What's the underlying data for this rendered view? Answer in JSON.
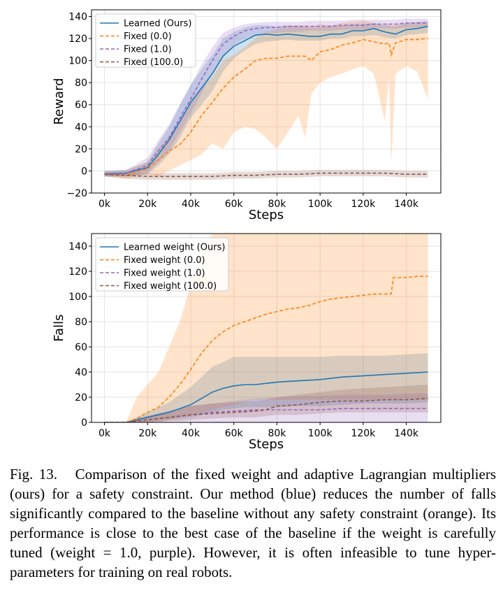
{
  "colors": {
    "learned": "#1f77b4",
    "fixed0": "#ff7f0e",
    "fixed1": "#9467bd",
    "fixed100": "#8c564b"
  },
  "caption": {
    "label": "Fig. 13.",
    "text": "Comparison of the fixed weight and adaptive Lagrangian multipliers (ours) for a safety constraint. Our method (blue) reduces the number of falls significantly compared to the baseline without any safety constraint (orange). Its performance is close to the best case of the baseline if the weight is carefully tuned (weight = 1.0, purple). However, it is often infeasible to tune hyper-parameters for training on real robots."
  },
  "chart_data": [
    {
      "type": "line",
      "xlabel": "Steps",
      "ylabel": "Reward",
      "xlim": [
        -6000,
        156000
      ],
      "ylim": [
        -20,
        146
      ],
      "xticks": [
        0,
        20000,
        40000,
        60000,
        80000,
        100000,
        120000,
        140000
      ],
      "xtick_labels": [
        "0k",
        "20k",
        "40k",
        "60k",
        "80k",
        "100k",
        "120k",
        "140k"
      ],
      "yticks": [
        -20,
        0,
        20,
        40,
        60,
        80,
        100,
        120,
        140
      ],
      "ytick_labels": [
        "−20",
        "0",
        "20",
        "40",
        "60",
        "80",
        "100",
        "120",
        "140"
      ],
      "legend_position": "top-left",
      "series": [
        {
          "key": "learned",
          "name": "Learned (Ours)",
          "style": "solid",
          "x": [
            0,
            10000,
            20000,
            25000,
            30000,
            35000,
            40000,
            45000,
            50000,
            55000,
            60000,
            65000,
            70000,
            75000,
            80000,
            85000,
            90000,
            95000,
            100000,
            105000,
            110000,
            115000,
            120000,
            125000,
            130000,
            135000,
            140000,
            145000,
            150000
          ],
          "y": [
            -3,
            -2,
            3,
            15,
            28,
            45,
            62,
            75,
            88,
            104,
            113,
            118,
            123,
            124,
            123,
            124,
            123,
            122,
            122,
            124,
            124,
            127,
            127,
            129,
            126,
            124,
            128,
            129,
            131
          ],
          "lower": [
            -5,
            -5,
            -3,
            5,
            15,
            30,
            48,
            60,
            72,
            90,
            102,
            109,
            115,
            117,
            118,
            119,
            118,
            118,
            118,
            120,
            120,
            122,
            122,
            123,
            121,
            120,
            123,
            124,
            125
          ],
          "upper": [
            0,
            1,
            8,
            25,
            40,
            60,
            78,
            92,
            105,
            120,
            126,
            130,
            132,
            132,
            131,
            132,
            131,
            130,
            130,
            131,
            132,
            133,
            133,
            134,
            132,
            131,
            134,
            135,
            136
          ]
        },
        {
          "key": "fixed0",
          "name": "Fixed (0.0)",
          "style": "dashed",
          "x": [
            0,
            10000,
            20000,
            25000,
            30000,
            35000,
            40000,
            45000,
            50000,
            55000,
            60000,
            65000,
            70000,
            75000,
            80000,
            85000,
            90000,
            93000,
            96000,
            100000,
            105000,
            110000,
            115000,
            120000,
            125000,
            130000,
            132000,
            133000,
            135000,
            140000,
            145000,
            150000
          ],
          "y": [
            -3,
            -4,
            2,
            10,
            18,
            24,
            35,
            50,
            62,
            75,
            85,
            92,
            100,
            102,
            102,
            104,
            104,
            104,
            100,
            108,
            110,
            114,
            116,
            119,
            117,
            115,
            116,
            105,
            116,
            119,
            119,
            120
          ],
          "lower": [
            -5,
            -7,
            -3,
            -5,
            0,
            5,
            10,
            15,
            25,
            20,
            35,
            40,
            38,
            30,
            20,
            35,
            50,
            30,
            70,
            80,
            85,
            88,
            92,
            95,
            88,
            45,
            85,
            5,
            88,
            95,
            90,
            65
          ],
          "upper": [
            -1,
            0,
            8,
            20,
            32,
            45,
            60,
            75,
            85,
            100,
            105,
            112,
            120,
            126,
            128,
            131,
            132,
            132,
            131,
            133,
            132,
            134,
            135,
            136,
            134,
            132,
            133,
            131,
            133,
            134,
            134,
            135
          ]
        },
        {
          "key": "fixed1",
          "name": "Fixed (1.0)",
          "style": "dashed",
          "x": [
            0,
            10000,
            20000,
            25000,
            30000,
            35000,
            40000,
            45000,
            50000,
            55000,
            60000,
            65000,
            70000,
            75000,
            80000,
            85000,
            90000,
            95000,
            100000,
            105000,
            110000,
            115000,
            120000,
            125000,
            130000,
            135000,
            140000,
            145000,
            150000
          ],
          "y": [
            -3,
            -2,
            5,
            18,
            30,
            48,
            65,
            83,
            100,
            115,
            122,
            127,
            129,
            130,
            130,
            131,
            131,
            131,
            131,
            131,
            132,
            132,
            132,
            133,
            133,
            133,
            134,
            134,
            134
          ],
          "lower": [
            -5,
            -5,
            -2,
            8,
            18,
            35,
            52,
            70,
            88,
            104,
            114,
            120,
            123,
            125,
            125,
            126,
            126,
            127,
            127,
            127,
            128,
            128,
            128,
            129,
            129,
            129,
            130,
            130,
            130
          ],
          "upper": [
            0,
            1,
            12,
            28,
            42,
            60,
            78,
            96,
            112,
            125,
            130,
            133,
            134,
            135,
            135,
            135,
            135,
            136,
            136,
            136,
            136,
            137,
            137,
            137,
            137,
            137,
            138,
            138,
            138
          ]
        },
        {
          "key": "fixed100",
          "name": "Fixed (100.0)",
          "style": "dashed",
          "x": [
            0,
            10000,
            20000,
            30000,
            40000,
            50000,
            60000,
            70000,
            80000,
            90000,
            100000,
            110000,
            120000,
            130000,
            140000,
            150000
          ],
          "y": [
            -3,
            -4,
            -5,
            -5,
            -5,
            -5,
            -4,
            -4,
            -3,
            -3,
            -2,
            -2,
            -2,
            -2,
            -3,
            -3
          ],
          "lower": [
            -5,
            -7,
            -8,
            -8,
            -8,
            -8,
            -7,
            -7,
            -6,
            -6,
            -5,
            -5,
            -5,
            -5,
            -6,
            -6
          ],
          "upper": [
            -1,
            -1,
            -2,
            -2,
            -2,
            -2,
            -1,
            -1,
            0,
            0,
            1,
            1,
            1,
            1,
            0,
            0
          ]
        }
      ]
    },
    {
      "type": "line",
      "xlabel": "Steps",
      "ylabel": "Falls",
      "xlim": [
        -6000,
        156000
      ],
      "ylim": [
        0,
        150
      ],
      "xticks": [
        0,
        20000,
        40000,
        60000,
        80000,
        100000,
        120000,
        140000
      ],
      "xtick_labels": [
        "0k",
        "20k",
        "40k",
        "60k",
        "80k",
        "100k",
        "120k",
        "140k"
      ],
      "yticks": [
        0,
        20,
        40,
        60,
        80,
        100,
        120,
        140
      ],
      "ytick_labels": [
        "0",
        "20",
        "40",
        "60",
        "80",
        "100",
        "120",
        "140"
      ],
      "legend_position": "top-left",
      "series": [
        {
          "key": "learned",
          "name": "Learned weight (Ours)",
          "style": "solid",
          "x": [
            0,
            10000,
            15000,
            20000,
            25000,
            30000,
            35000,
            40000,
            45000,
            50000,
            55000,
            60000,
            65000,
            70000,
            75000,
            80000,
            90000,
            100000,
            110000,
            120000,
            130000,
            140000,
            150000
          ],
          "y": [
            0,
            0,
            2,
            4,
            6,
            8,
            11,
            14,
            19,
            24,
            27,
            29,
            30,
            30,
            31,
            32,
            33,
            34,
            36,
            37,
            38,
            39,
            40
          ],
          "lower": [
            0,
            0,
            0,
            0,
            1,
            2,
            3,
            4,
            6,
            8,
            10,
            11,
            12,
            12,
            12,
            12,
            13,
            13,
            14,
            15,
            15,
            15,
            16
          ],
          "upper": [
            0,
            0,
            4,
            8,
            12,
            16,
            22,
            28,
            36,
            44,
            48,
            52,
            52,
            52,
            52,
            52,
            52,
            52,
            53,
            53,
            53,
            54,
            55
          ]
        },
        {
          "key": "fixed0",
          "name": "Fixed weight (0.0)",
          "style": "dashed",
          "x": [
            0,
            10000,
            15000,
            20000,
            25000,
            30000,
            35000,
            40000,
            45000,
            50000,
            55000,
            60000,
            65000,
            70000,
            75000,
            80000,
            85000,
            90000,
            95000,
            100000,
            105000,
            110000,
            115000,
            120000,
            125000,
            130000,
            133000,
            134000,
            140000,
            145000,
            150000
          ],
          "y": [
            0,
            0,
            3,
            8,
            12,
            20,
            30,
            42,
            55,
            65,
            72,
            77,
            80,
            83,
            86,
            88,
            90,
            91,
            93,
            96,
            98,
            99,
            100,
            101,
            102,
            102,
            102,
            115,
            115,
            116,
            116
          ],
          "lower": [
            0,
            0,
            0,
            0,
            1,
            2,
            4,
            6,
            8,
            10,
            12,
            14,
            16,
            18,
            18,
            18,
            18,
            18,
            18,
            18,
            18,
            18,
            18,
            18,
            18,
            18,
            18,
            18,
            18,
            18,
            18
          ],
          "upper": [
            0,
            0,
            20,
            30,
            40,
            60,
            80,
            110,
            130,
            150,
            150,
            150,
            150,
            150,
            150,
            150,
            150,
            150,
            150,
            150,
            150,
            150,
            150,
            150,
            150,
            150,
            150,
            150,
            150,
            150,
            150
          ]
        },
        {
          "key": "fixed1",
          "name": "Fixed weight (1.0)",
          "style": "dashed",
          "x": [
            0,
            10000,
            15000,
            20000,
            25000,
            30000,
            35000,
            40000,
            50000,
            60000,
            70000,
            80000,
            90000,
            100000,
            110000,
            120000,
            130000,
            140000,
            150000
          ],
          "y": [
            0,
            0,
            1,
            2,
            3,
            4,
            5,
            6,
            8,
            9,
            10,
            10,
            10,
            10,
            11,
            11,
            11,
            11,
            11
          ],
          "lower": [
            0,
            0,
            0,
            0,
            0,
            0,
            0,
            0,
            0,
            0,
            0,
            0,
            0,
            0,
            0,
            0,
            0,
            0,
            0
          ],
          "upper": [
            0,
            0,
            3,
            5,
            7,
            9,
            11,
            13,
            15,
            17,
            19,
            20,
            21,
            21,
            22,
            22,
            22,
            23,
            23
          ]
        },
        {
          "key": "fixed100",
          "name": "Fixed weight (100.0)",
          "style": "dashed",
          "x": [
            0,
            10000,
            15000,
            20000,
            25000,
            30000,
            35000,
            40000,
            50000,
            60000,
            70000,
            75000,
            80000,
            90000,
            100000,
            110000,
            120000,
            130000,
            140000,
            150000
          ],
          "y": [
            0,
            0,
            1,
            2,
            3,
            4,
            5,
            6,
            7,
            8,
            9,
            10,
            13,
            14,
            16,
            17,
            17,
            18,
            18,
            19
          ],
          "lower": [
            0,
            0,
            0,
            0,
            0,
            1,
            1,
            2,
            3,
            4,
            4,
            5,
            6,
            6,
            7,
            8,
            8,
            8,
            8,
            8
          ],
          "upper": [
            0,
            0,
            3,
            5,
            7,
            9,
            11,
            13,
            15,
            16,
            17,
            18,
            20,
            22,
            24,
            26,
            27,
            28,
            29,
            30
          ]
        }
      ]
    }
  ]
}
